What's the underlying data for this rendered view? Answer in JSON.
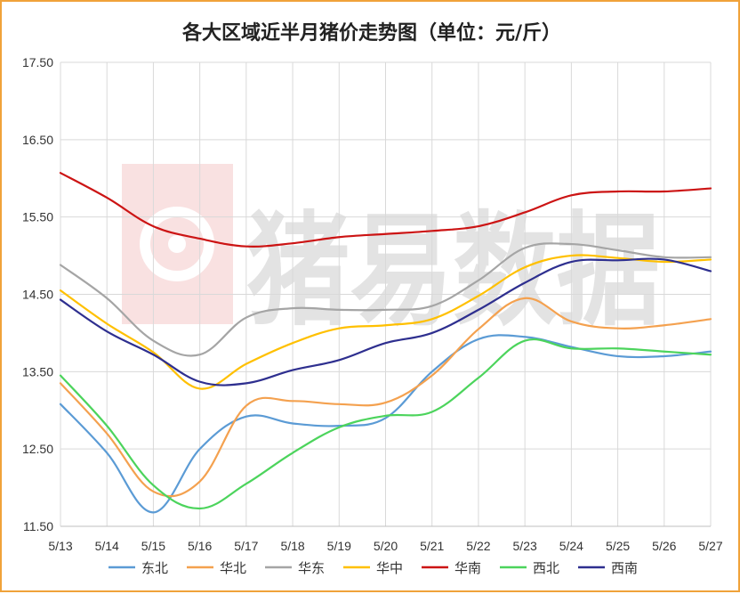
{
  "chart_data": {
    "type": "line",
    "title": "各大区域近半月猪价走势图（单位：元/斤）",
    "watermark": "猪易数据",
    "x": [
      "5/13",
      "5/14",
      "5/15",
      "5/16",
      "5/17",
      "5/18",
      "5/19",
      "5/20",
      "5/21",
      "5/22",
      "5/23",
      "5/24",
      "5/25",
      "5/26",
      "5/27"
    ],
    "ylim": [
      11.5,
      17.5
    ],
    "yticks": [
      "11.50",
      "12.50",
      "13.50",
      "14.50",
      "15.50",
      "16.50",
      "17.50"
    ],
    "ytick_values": [
      11.5,
      12.5,
      13.5,
      14.5,
      15.5,
      16.5,
      17.5
    ],
    "grid": true,
    "legend_position": "bottom",
    "series": [
      {
        "name": "东北",
        "color": "#5b9bd5",
        "values": [
          13.08,
          12.45,
          11.68,
          12.5,
          12.92,
          12.83,
          12.8,
          12.9,
          13.5,
          13.92,
          13.95,
          13.82,
          13.7,
          13.7,
          13.76
        ]
      },
      {
        "name": "华北",
        "color": "#f4a14f",
        "values": [
          13.35,
          12.7,
          11.95,
          12.08,
          13.06,
          13.12,
          13.08,
          13.1,
          13.45,
          14.05,
          14.45,
          14.15,
          14.06,
          14.1,
          14.18
        ]
      },
      {
        "name": "华东",
        "color": "#a5a5a5",
        "values": [
          14.88,
          14.45,
          13.9,
          13.72,
          14.2,
          14.32,
          14.3,
          14.3,
          14.35,
          14.68,
          15.1,
          15.15,
          15.07,
          14.98,
          14.98
        ]
      },
      {
        "name": "华中",
        "color": "#ffc000",
        "values": [
          14.55,
          14.12,
          13.75,
          13.28,
          13.6,
          13.87,
          14.06,
          14.1,
          14.18,
          14.48,
          14.85,
          15.0,
          14.97,
          14.92,
          14.95
        ]
      },
      {
        "name": "华南",
        "color": "#cc1414",
        "values": [
          16.07,
          15.75,
          15.38,
          15.22,
          15.12,
          15.16,
          15.24,
          15.28,
          15.32,
          15.38,
          15.56,
          15.78,
          15.83,
          15.83,
          15.87
        ]
      },
      {
        "name": "西北",
        "color": "#4cd45c",
        "values": [
          13.45,
          12.8,
          12.03,
          11.73,
          12.05,
          12.45,
          12.78,
          12.93,
          12.98,
          13.42,
          13.9,
          13.8,
          13.8,
          13.76,
          13.72
        ]
      },
      {
        "name": "西南",
        "color": "#2e2f8f",
        "values": [
          14.43,
          14.02,
          13.72,
          13.37,
          13.35,
          13.52,
          13.65,
          13.87,
          14.0,
          14.3,
          14.65,
          14.92,
          14.94,
          14.95,
          14.8
        ]
      }
    ]
  }
}
